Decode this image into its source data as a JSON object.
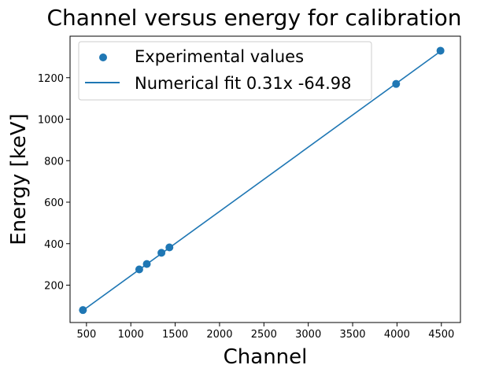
{
  "chart_data": {
    "type": "scatter",
    "title": "Channel versus energy for calibration",
    "xlabel": "Channel",
    "ylabel": "Energy [keV]",
    "xlim": [
      315,
      4715
    ],
    "ylim": [
      20,
      1400
    ],
    "xticks": [
      500,
      1000,
      1500,
      2000,
      2500,
      3000,
      3500,
      4000,
      4500
    ],
    "yticks": [
      200,
      400,
      600,
      800,
      1000,
      1200
    ],
    "grid": false,
    "legend_position": "top-left",
    "colors": {
      "series": "#1f77b4",
      "axes": "#000000"
    },
    "series": [
      {
        "name": "Experimental values",
        "kind": "scatter",
        "x": [
          460,
          1095,
          1180,
          1345,
          1435,
          3990,
          4490
        ],
        "y": [
          80,
          276,
          302,
          356,
          382,
          1170,
          1330
        ]
      },
      {
        "name": "Numerical fit 0.31x -64.98",
        "kind": "line",
        "x": [
          460,
          4490
        ],
        "y": [
          78,
          1327
        ]
      }
    ]
  }
}
